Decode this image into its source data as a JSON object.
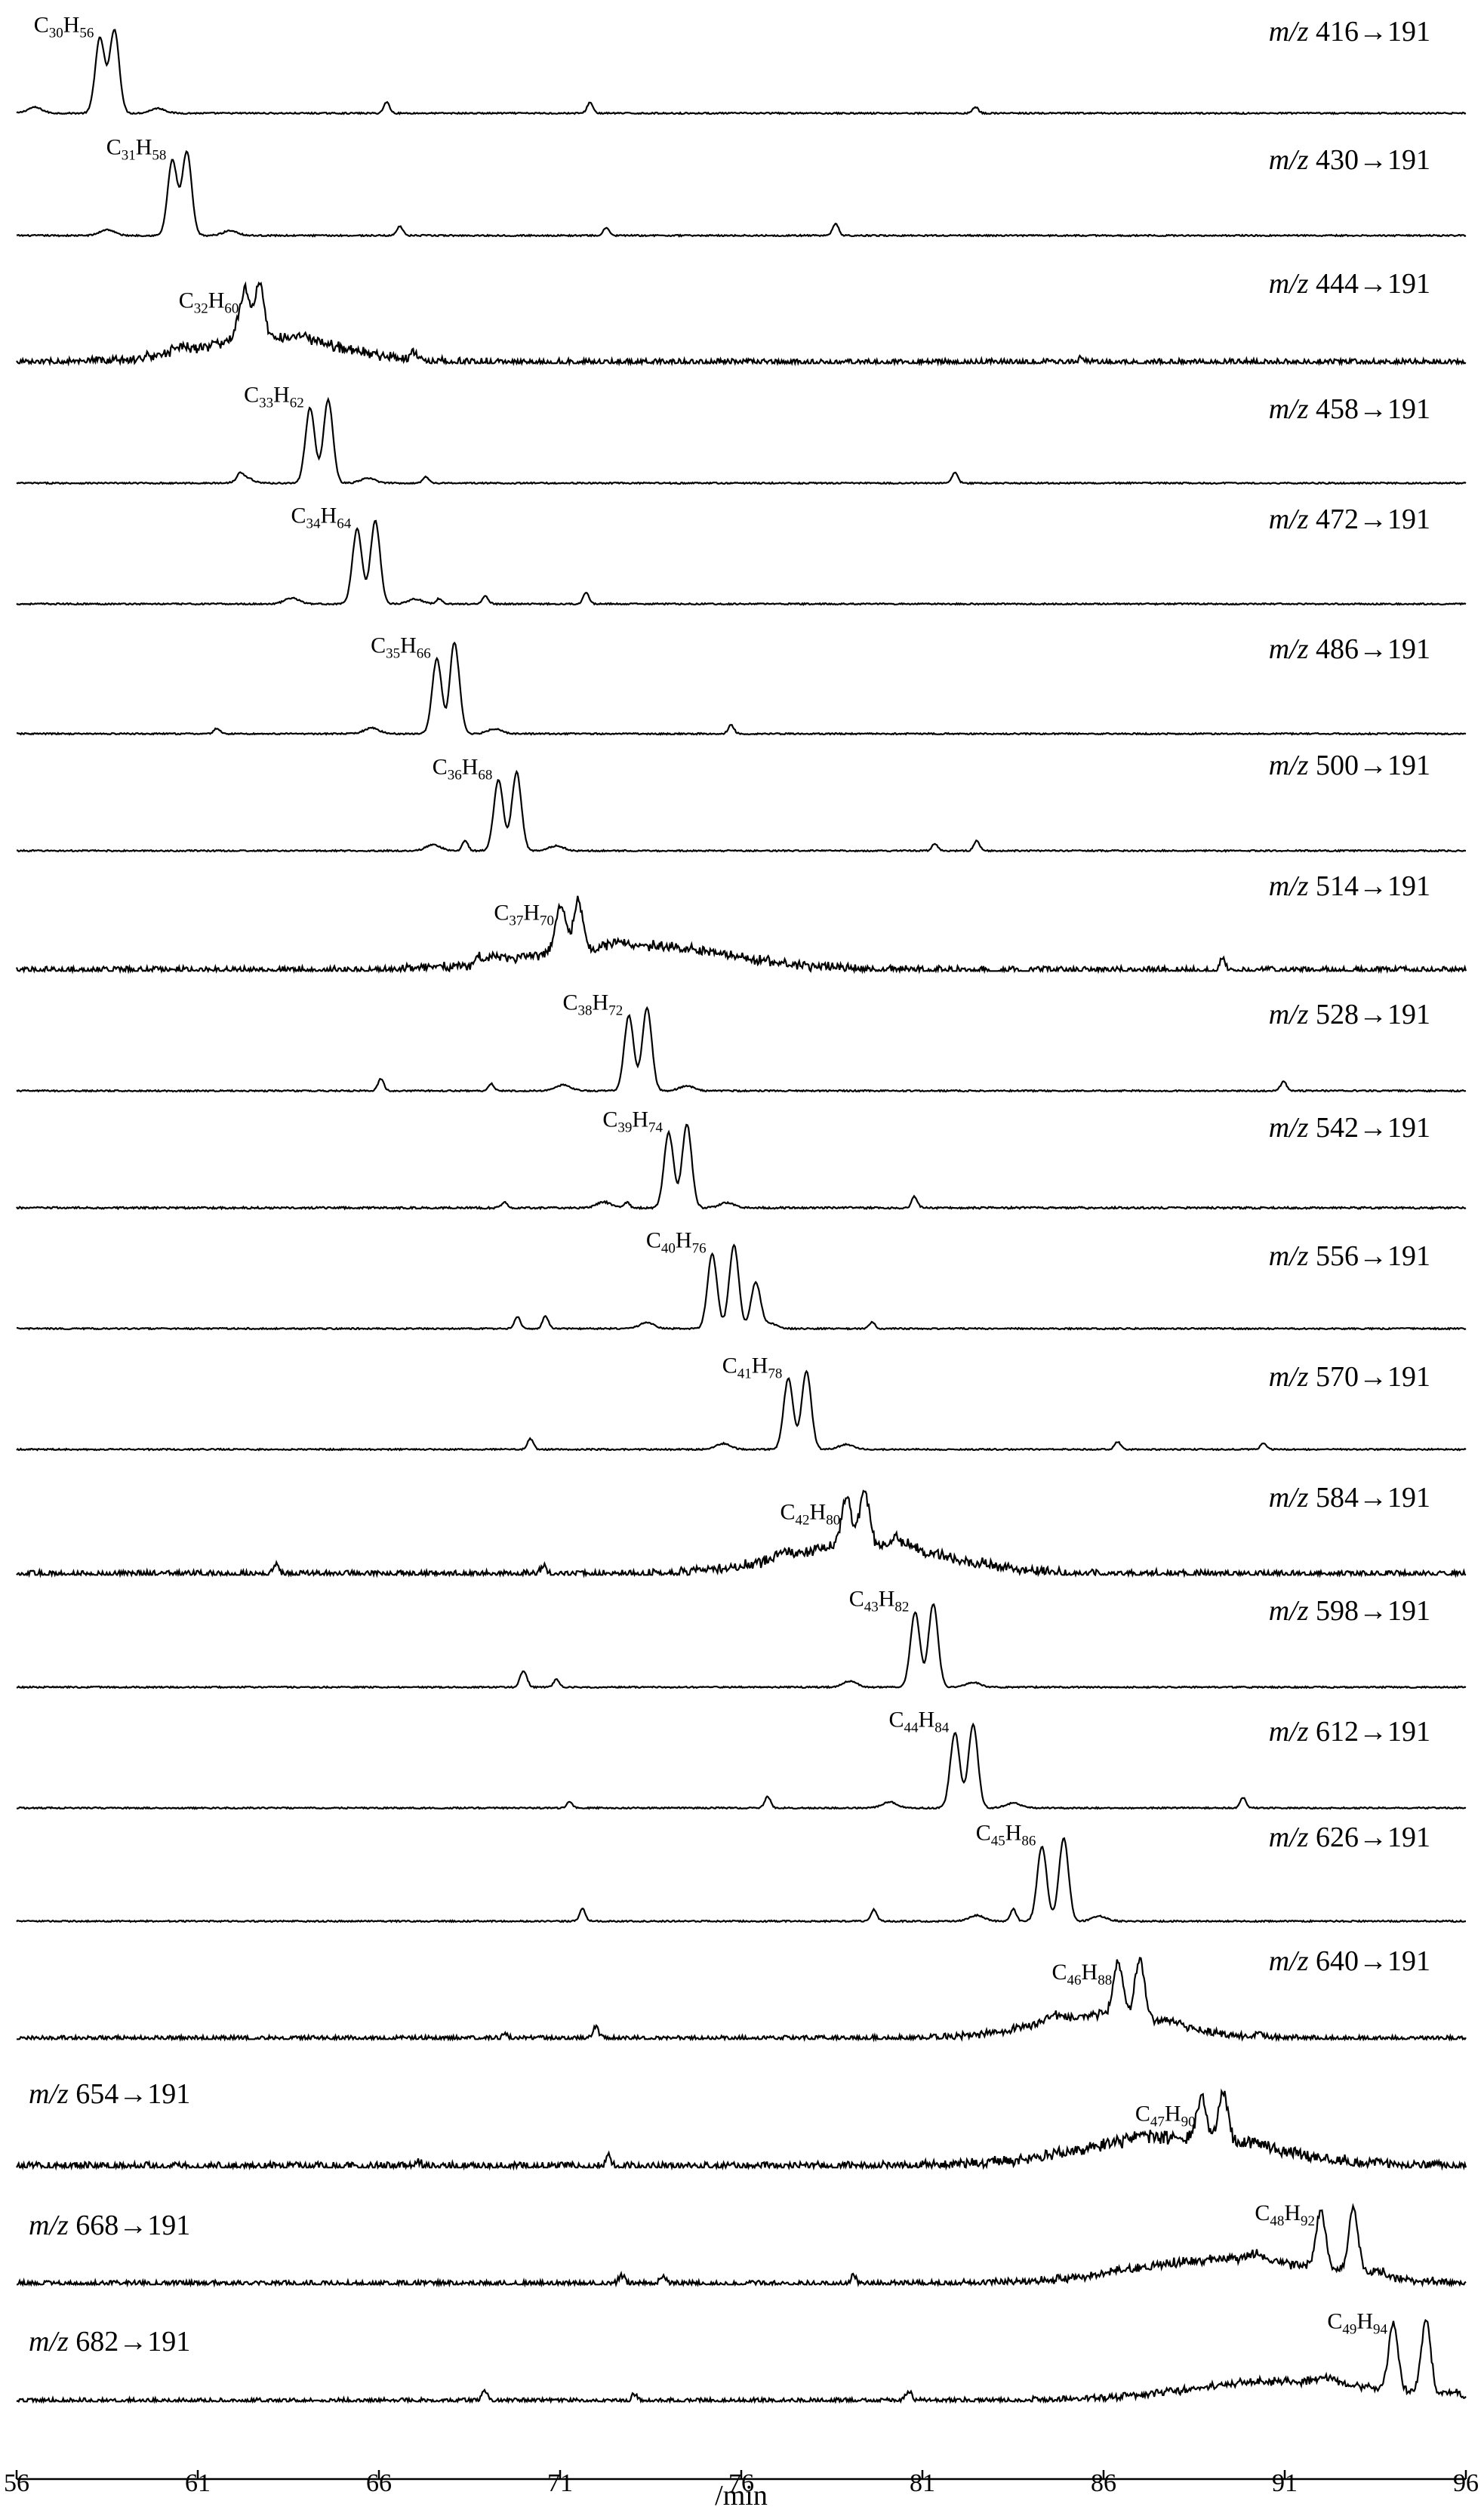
{
  "chart_data": {
    "type": "line",
    "title": "",
    "xlabel": "/min",
    "ylabel": "",
    "xlim": [
      56,
      96
    ],
    "x_ticks": [
      "56",
      "61",
      "66",
      "71",
      "76",
      "81",
      "86",
      "91",
      "96"
    ],
    "grid": false,
    "panels": [
      {
        "transition": "m/z 416→191",
        "mz_prefix": "m/z",
        "mz_rest": " 416→191",
        "formula": {
          "c": "30",
          "h": "56"
        },
        "peaks": [
          58.3,
          58.7
        ],
        "main_height": 0.85,
        "noise": 0.015,
        "hump": null
      },
      {
        "transition": "m/z 430→191",
        "mz_prefix": "m/z",
        "mz_rest": " 430→191",
        "formula": {
          "c": "31",
          "h": "58"
        },
        "peaks": [
          60.3,
          60.7
        ],
        "main_height": 0.85,
        "noise": 0.015,
        "hump": null
      },
      {
        "transition": "m/z 444→191",
        "mz_prefix": "m/z",
        "mz_rest": " 444→191",
        "formula": {
          "c": "32",
          "h": "60"
        },
        "peaks": [
          62.3,
          62.7
        ],
        "main_height": 0.55,
        "noise": 0.07,
        "hump": {
          "center": 63.0,
          "width": 4.5,
          "height": 0.25
        }
      },
      {
        "transition": "m/z 458→191",
        "mz_prefix": "m/z",
        "mz_rest": " 458→191",
        "formula": {
          "c": "33",
          "h": "62"
        },
        "peaks": [
          64.1,
          64.6
        ],
        "main_height": 0.85,
        "noise": 0.015,
        "hump": null
      },
      {
        "transition": "m/z 472→191",
        "mz_prefix": "m/z",
        "mz_rest": " 472→191",
        "formula": {
          "c": "34",
          "h": "64"
        },
        "peaks": [
          65.4,
          65.9
        ],
        "main_height": 0.85,
        "noise": 0.015,
        "hump": null
      },
      {
        "transition": "m/z 486→191",
        "mz_prefix": "m/z",
        "mz_rest": " 486→191",
        "formula": {
          "c": "35",
          "h": "66"
        },
        "peaks": [
          67.6,
          68.1
        ],
        "main_height": 0.85,
        "noise": 0.015,
        "hump": null
      },
      {
        "transition": "m/z 500→191",
        "mz_prefix": "m/z",
        "mz_rest": " 500→191",
        "formula": {
          "c": "36",
          "h": "68"
        },
        "peaks": [
          69.3,
          69.8
        ],
        "main_height": 0.8,
        "noise": 0.015,
        "hump": null
      },
      {
        "transition": "m/z 514→191",
        "mz_prefix": "m/z",
        "mz_rest": " 514→191",
        "formula": {
          "c": "37",
          "h": "70"
        },
        "peaks": [
          71.0,
          71.5
        ],
        "main_height": 0.5,
        "noise": 0.07,
        "hump": {
          "center": 73.0,
          "width": 6.0,
          "height": 0.25
        }
      },
      {
        "transition": "m/z 528→191",
        "mz_prefix": "m/z",
        "mz_rest": " 528→191",
        "formula": {
          "c": "38",
          "h": "72"
        },
        "peaks": [
          72.9,
          73.4
        ],
        "main_height": 0.85,
        "noise": 0.015,
        "hump": null
      },
      {
        "transition": "m/z 542→191",
        "mz_prefix": "m/z",
        "mz_rest": " 542→191",
        "formula": {
          "c": "39",
          "h": "74"
        },
        "peaks": [
          74.0,
          74.5
        ],
        "main_height": 0.85,
        "noise": 0.02,
        "hump": null
      },
      {
        "transition": "m/z 556→191",
        "mz_prefix": "m/z",
        "mz_rest": " 556→191",
        "formula": {
          "c": "40",
          "h": "76"
        },
        "peaks": [
          75.2,
          75.8,
          76.4
        ],
        "main_height": 0.85,
        "noise": 0.015,
        "hump": null
      },
      {
        "transition": "m/z 570→191",
        "mz_prefix": "m/z",
        "mz_rest": " 570→191",
        "formula": {
          "c": "41",
          "h": "78"
        },
        "peaks": [
          77.3,
          77.8
        ],
        "main_height": 0.8,
        "noise": 0.015,
        "hump": null
      },
      {
        "transition": "m/z 584→191",
        "mz_prefix": "m/z",
        "mz_rest": " 584→191",
        "formula": {
          "c": "42",
          "h": "80"
        },
        "peaks": [
          78.9,
          79.4
        ],
        "main_height": 0.55,
        "noise": 0.07,
        "hump": {
          "center": 79.5,
          "width": 5.0,
          "height": 0.3
        }
      },
      {
        "transition": "m/z 598→191",
        "mz_prefix": "m/z",
        "mz_rest": " 598→191",
        "formula": {
          "c": "43",
          "h": "82"
        },
        "peaks": [
          80.8,
          81.3
        ],
        "main_height": 0.85,
        "noise": 0.015,
        "hump": null
      },
      {
        "transition": "m/z 612→191",
        "mz_prefix": "m/z",
        "mz_rest": " 612→191",
        "formula": {
          "c": "44",
          "h": "84"
        },
        "peaks": [
          81.9,
          82.4
        ],
        "main_height": 0.85,
        "noise": 0.015,
        "hump": null
      },
      {
        "transition": "m/z 626→191",
        "mz_prefix": "m/z",
        "mz_rest": " 626→191",
        "formula": {
          "c": "45",
          "h": "86"
        },
        "peaks": [
          84.3,
          84.9
        ],
        "main_height": 0.85,
        "noise": 0.015,
        "hump": null
      },
      {
        "transition": "m/z 640→191",
        "mz_prefix": "m/z",
        "mz_rest": " 640→191",
        "formula": {
          "c": "46",
          "h": "88"
        },
        "peaks": [
          86.4,
          87.0
        ],
        "main_height": 0.6,
        "noise": 0.05,
        "hump": {
          "center": 86.0,
          "width": 4.0,
          "height": 0.25
        }
      },
      {
        "transition": "m/z 654→191",
        "mz_prefix": "m/z",
        "mz_rest": " 654→191",
        "formula": {
          "c": "47",
          "h": "90"
        },
        "peaks": [
          88.7,
          89.3
        ],
        "main_height": 0.45,
        "noise": 0.09,
        "hump": {
          "center": 88.0,
          "width": 6.0,
          "height": 0.3
        }
      },
      {
        "transition": "m/z 668→191",
        "mz_prefix": "m/z",
        "mz_rest": " 668→191",
        "formula": {
          "c": "48",
          "h": "92"
        },
        "peaks": [
          92.0,
          92.9
        ],
        "main_height": 0.65,
        "noise": 0.06,
        "hump": {
          "center": 89.5,
          "width": 6.0,
          "height": 0.25
        }
      },
      {
        "transition": "m/z 682→191",
        "mz_prefix": "m/z",
        "mz_rest": " 682→191",
        "formula": {
          "c": "49",
          "h": "94"
        },
        "peaks": [
          94.0,
          94.9
        ],
        "main_height": 0.75,
        "noise": 0.05,
        "hump": {
          "center": 91.0,
          "width": 6.0,
          "height": 0.2
        }
      }
    ]
  }
}
